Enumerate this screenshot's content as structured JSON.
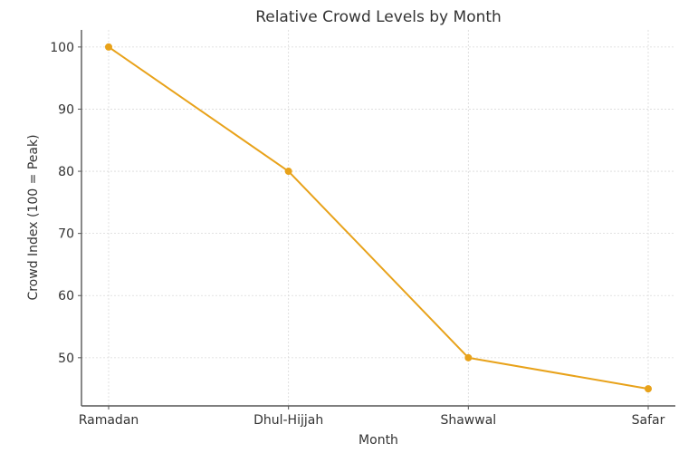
{
  "chart_data": {
    "type": "line",
    "title": "Relative Crowd Levels by Month",
    "xlabel": "Month",
    "ylabel": "Crowd Index (100 = Peak)",
    "categories": [
      "Ramadan",
      "Dhul-Hijjah",
      "Shawwal",
      "Safar"
    ],
    "series": [
      {
        "name": "Crowd Index",
        "values": [
          100,
          80,
          50,
          45
        ],
        "color": "#E8A21A"
      }
    ],
    "yticks": [
      50,
      60,
      70,
      80,
      90,
      100
    ],
    "ylim": [
      42.25,
      102.75
    ],
    "grid": true,
    "legend": "none"
  }
}
